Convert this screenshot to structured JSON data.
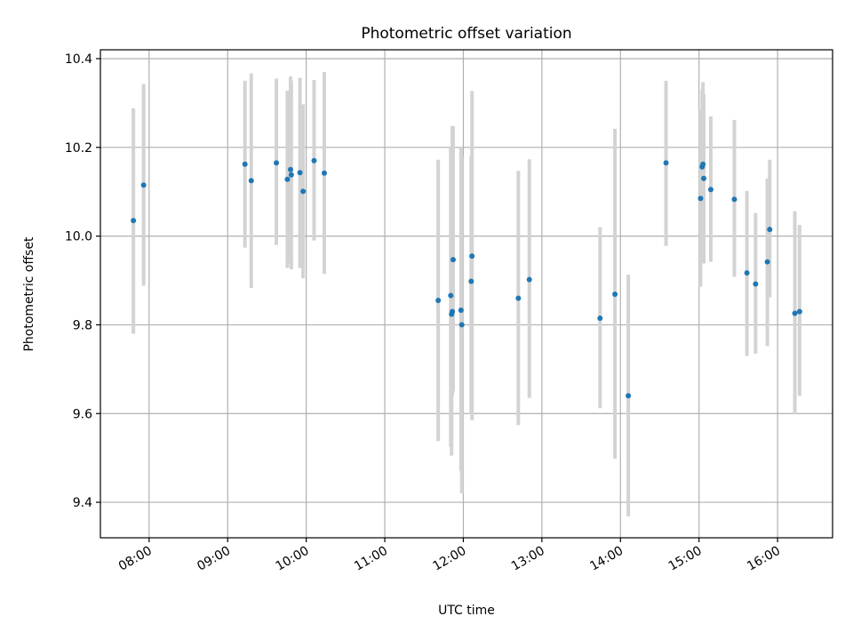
{
  "chart_data": {
    "type": "scatter",
    "title": "Photometric offset variation",
    "xlabel": "UTC time",
    "ylabel": "Photometric offset",
    "xlim_hours": [
      7.38,
      16.7
    ],
    "ylim": [
      9.32,
      10.42
    ],
    "x_ticks": [
      {
        "value": 8,
        "label": "08:00"
      },
      {
        "value": 9,
        "label": "09:00"
      },
      {
        "value": 10,
        "label": "10:00"
      },
      {
        "value": 11,
        "label": "11:00"
      },
      {
        "value": 12,
        "label": "12:00"
      },
      {
        "value": 13,
        "label": "13:00"
      },
      {
        "value": 14,
        "label": "14:00"
      },
      {
        "value": 15,
        "label": "15:00"
      },
      {
        "value": 16,
        "label": "16:00"
      }
    ],
    "y_ticks": [
      {
        "value": 9.4,
        "label": "9.4"
      },
      {
        "value": 9.6,
        "label": "9.6"
      },
      {
        "value": 9.8,
        "label": "9.8"
      },
      {
        "value": 10.0,
        "label": "10.0"
      },
      {
        "value": 10.2,
        "label": "10.2"
      },
      {
        "value": 10.4,
        "label": "10.4"
      }
    ],
    "grid": true,
    "marker_color": "#1f77b4",
    "errorbar_color": "#d3d3d3",
    "points": [
      {
        "x": 7.8,
        "y": 10.035,
        "ylo": 9.78,
        "yhi": 10.288
      },
      {
        "x": 7.93,
        "y": 10.115,
        "ylo": 9.888,
        "yhi": 10.343
      },
      {
        "x": 9.22,
        "y": 10.162,
        "ylo": 9.974,
        "yhi": 10.35
      },
      {
        "x": 9.3,
        "y": 10.125,
        "ylo": 9.883,
        "yhi": 10.367
      },
      {
        "x": 9.62,
        "y": 10.165,
        "ylo": 9.98,
        "yhi": 10.355
      },
      {
        "x": 9.76,
        "y": 10.128,
        "ylo": 9.928,
        "yhi": 10.328
      },
      {
        "x": 9.8,
        "y": 10.15,
        "ylo": 9.938,
        "yhi": 10.36
      },
      {
        "x": 9.81,
        "y": 10.138,
        "ylo": 9.925,
        "yhi": 10.35
      },
      {
        "x": 9.92,
        "y": 10.143,
        "ylo": 9.928,
        "yhi": 10.357
      },
      {
        "x": 9.96,
        "y": 10.101,
        "ylo": 9.905,
        "yhi": 10.297
      },
      {
        "x": 10.1,
        "y": 10.17,
        "ylo": 9.99,
        "yhi": 10.352
      },
      {
        "x": 10.23,
        "y": 10.142,
        "ylo": 9.915,
        "yhi": 10.37
      },
      {
        "x": 11.68,
        "y": 9.855,
        "ylo": 9.538,
        "yhi": 10.172
      },
      {
        "x": 11.84,
        "y": 9.866,
        "ylo": 9.525,
        "yhi": 10.2
      },
      {
        "x": 11.85,
        "y": 9.824,
        "ylo": 9.505,
        "yhi": 10.12
      },
      {
        "x": 11.86,
        "y": 9.83,
        "ylo": 9.64,
        "yhi": 10.248
      },
      {
        "x": 11.87,
        "y": 9.947,
        "ylo": 9.65,
        "yhi": 10.248
      },
      {
        "x": 11.97,
        "y": 9.833,
        "ylo": 9.47,
        "yhi": 10.2
      },
      {
        "x": 11.98,
        "y": 9.8,
        "ylo": 9.42,
        "yhi": 10.18
      },
      {
        "x": 12.1,
        "y": 9.898,
        "ylo": 9.6,
        "yhi": 10.18
      },
      {
        "x": 12.11,
        "y": 9.955,
        "ylo": 9.585,
        "yhi": 10.327
      },
      {
        "x": 12.7,
        "y": 9.86,
        "ylo": 9.574,
        "yhi": 10.147
      },
      {
        "x": 12.84,
        "y": 9.902,
        "ylo": 9.635,
        "yhi": 10.173
      },
      {
        "x": 13.74,
        "y": 9.815,
        "ylo": 9.612,
        "yhi": 10.02
      },
      {
        "x": 13.93,
        "y": 9.869,
        "ylo": 9.498,
        "yhi": 10.242
      },
      {
        "x": 14.1,
        "y": 9.64,
        "ylo": 9.368,
        "yhi": 9.913
      },
      {
        "x": 14.58,
        "y": 10.165,
        "ylo": 9.978,
        "yhi": 10.35
      },
      {
        "x": 15.02,
        "y": 10.085,
        "ylo": 9.886,
        "yhi": 10.284
      },
      {
        "x": 15.04,
        "y": 10.156,
        "ylo": 9.99,
        "yhi": 10.33
      },
      {
        "x": 15.05,
        "y": 10.162,
        "ylo": 9.976,
        "yhi": 10.347
      },
      {
        "x": 15.06,
        "y": 10.13,
        "ylo": 9.938,
        "yhi": 10.32
      },
      {
        "x": 15.15,
        "y": 10.105,
        "ylo": 9.942,
        "yhi": 10.27
      },
      {
        "x": 15.45,
        "y": 10.083,
        "ylo": 9.908,
        "yhi": 10.262
      },
      {
        "x": 15.61,
        "y": 9.917,
        "ylo": 9.73,
        "yhi": 10.102
      },
      {
        "x": 15.72,
        "y": 9.892,
        "ylo": 9.735,
        "yhi": 10.052
      },
      {
        "x": 15.87,
        "y": 9.942,
        "ylo": 9.752,
        "yhi": 10.13
      },
      {
        "x": 15.9,
        "y": 10.015,
        "ylo": 9.862,
        "yhi": 10.172
      },
      {
        "x": 16.22,
        "y": 9.826,
        "ylo": 9.598,
        "yhi": 10.056
      },
      {
        "x": 16.28,
        "y": 9.83,
        "ylo": 9.64,
        "yhi": 10.025
      }
    ]
  }
}
